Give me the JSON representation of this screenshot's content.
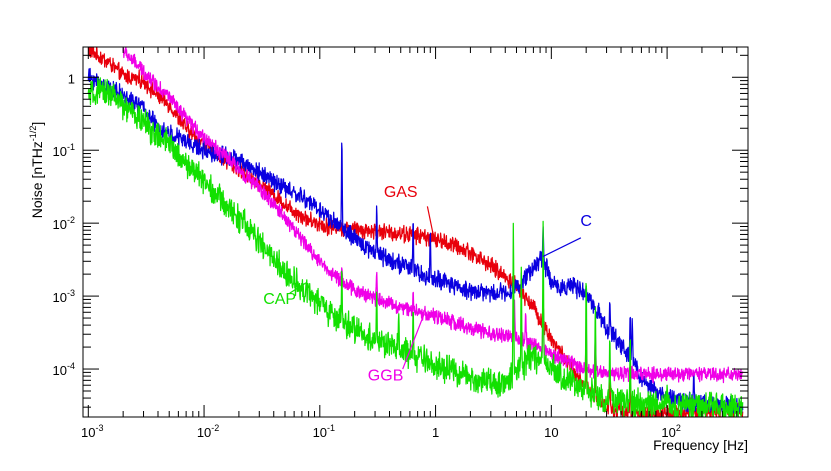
{
  "chart_data": {
    "type": "line",
    "title": "",
    "xlabel": "Frequency [Hz]",
    "ylabel": {
      "base": "Noise [nTHz",
      "exponent": "-1/2",
      "close": "]"
    },
    "xscale": "log",
    "yscale": "log",
    "xlim": [
      0.0009,
      500
    ],
    "ylim": [
      2.2e-05,
      2.6
    ],
    "grid": false,
    "legend": "none",
    "x_ticks": [
      {
        "base": "10",
        "exp": "-3",
        "value": 0.001
      },
      {
        "base": "10",
        "exp": "-2",
        "value": 0.01
      },
      {
        "base": "10",
        "exp": "-1",
        "value": 0.1
      },
      {
        "base": "1",
        "exp": "",
        "value": 1
      },
      {
        "base": "10",
        "exp": "",
        "value": 10
      },
      {
        "base": "10",
        "exp": "2",
        "value": 100
      }
    ],
    "y_ticks": [
      {
        "base": "10",
        "exp": "-4",
        "value": 0.0001
      },
      {
        "base": "10",
        "exp": "-3",
        "value": 0.001
      },
      {
        "base": "10",
        "exp": "-2",
        "value": 0.01
      },
      {
        "base": "10",
        "exp": "-1",
        "value": 0.1
      },
      {
        "base": "1",
        "exp": "",
        "value": 1
      }
    ],
    "series": [
      {
        "name": "GAS",
        "color": "#e8000b",
        "noise": 0.18,
        "points": [
          [
            0.001,
            2.4
          ],
          [
            0.0015,
            1.6
          ],
          [
            0.002,
            1.05
          ],
          [
            0.003,
            0.9
          ],
          [
            0.004,
            0.55
          ],
          [
            0.005,
            0.42
          ],
          [
            0.007,
            0.2
          ],
          [
            0.01,
            0.12
          ],
          [
            0.015,
            0.075
          ],
          [
            0.02,
            0.055
          ],
          [
            0.03,
            0.035
          ],
          [
            0.05,
            0.018
          ],
          [
            0.08,
            0.011
          ],
          [
            0.12,
            0.009
          ],
          [
            0.2,
            0.0082
          ],
          [
            0.3,
            0.0078
          ],
          [
            0.5,
            0.0072
          ],
          [
            0.8,
            0.0066
          ],
          [
            1.2,
            0.0055
          ],
          [
            2,
            0.004
          ],
          [
            3,
            0.0026
          ],
          [
            5,
            0.0014
          ],
          [
            7,
            0.00072
          ],
          [
            10,
            0.00026
          ],
          [
            15,
            0.0001
          ],
          [
            20,
            5.2e-05
          ],
          [
            30,
            3e-05
          ],
          [
            50,
            2.5e-05
          ],
          [
            100,
            2.4e-05
          ],
          [
            200,
            2.6e-05
          ],
          [
            450,
            2.8e-05
          ]
        ],
        "peaks": [
          [
            8.5,
            0.0008
          ],
          [
            20,
            0.0002
          ],
          [
            24,
            9e-05
          ],
          [
            32,
            0.0001
          ],
          [
            48,
            9e-05
          ],
          [
            160,
            4e-05
          ]
        ]
      },
      {
        "name": "C",
        "color": "#0a00e0",
        "noise": 0.2,
        "points": [
          [
            0.001,
            1.0
          ],
          [
            0.0015,
            0.72
          ],
          [
            0.002,
            0.55
          ],
          [
            0.003,
            0.38
          ],
          [
            0.004,
            0.2
          ],
          [
            0.005,
            0.17
          ],
          [
            0.007,
            0.13
          ],
          [
            0.01,
            0.1
          ],
          [
            0.015,
            0.085
          ],
          [
            0.02,
            0.07
          ],
          [
            0.03,
            0.05
          ],
          [
            0.05,
            0.03
          ],
          [
            0.08,
            0.02
          ],
          [
            0.12,
            0.012
          ],
          [
            0.2,
            0.006
          ],
          [
            0.3,
            0.004
          ],
          [
            0.5,
            0.0027
          ],
          [
            0.8,
            0.0019
          ],
          [
            1.2,
            0.0015
          ],
          [
            2,
            0.0012
          ],
          [
            3,
            0.0011
          ],
          [
            4,
            0.00115
          ],
          [
            5,
            0.0013
          ],
          [
            6,
            0.0018
          ],
          [
            7,
            0.0025
          ],
          [
            8,
            0.0033
          ],
          [
            9,
            0.0025
          ],
          [
            10,
            0.0016
          ],
          [
            12,
            0.0013
          ],
          [
            15,
            0.0014
          ],
          [
            20,
            0.001
          ],
          [
            25,
            0.00065
          ],
          [
            30,
            0.00035
          ],
          [
            40,
            0.00022
          ],
          [
            50,
            0.00013
          ],
          [
            60,
            7.5e-05
          ],
          [
            80,
            4.8e-05
          ],
          [
            100,
            4.2e-05
          ],
          [
            150,
            3.6e-05
          ],
          [
            200,
            3.3e-05
          ],
          [
            300,
            3.1e-05
          ],
          [
            450,
            3e-05
          ]
        ],
        "peaks": [
          [
            0.155,
            0.16
          ],
          [
            0.31,
            0.018
          ],
          [
            0.64,
            0.012
          ],
          [
            0.9,
            0.008
          ],
          [
            8.5,
            0.009
          ],
          [
            20,
            0.0014
          ],
          [
            32,
            0.0009
          ],
          [
            48,
            0.0006
          ],
          [
            50,
            0.0005
          ],
          [
            170,
            0.0001
          ]
        ]
      },
      {
        "name": "GGB",
        "color": "#f000e8",
        "noise": 0.16,
        "points": [
          [
            0.002,
            2.3
          ],
          [
            0.003,
            1.2
          ],
          [
            0.004,
            0.75
          ],
          [
            0.005,
            0.55
          ],
          [
            0.006,
            0.35
          ],
          [
            0.007,
            0.27
          ],
          [
            0.01,
            0.15
          ],
          [
            0.015,
            0.085
          ],
          [
            0.02,
            0.055
          ],
          [
            0.03,
            0.03
          ],
          [
            0.05,
            0.012
          ],
          [
            0.08,
            0.0045
          ],
          [
            0.12,
            0.0022
          ],
          [
            0.2,
            0.0012
          ],
          [
            0.3,
            0.00095
          ],
          [
            0.5,
            0.0007
          ],
          [
            0.8,
            0.00058
          ],
          [
            1.2,
            0.00048
          ],
          [
            2,
            0.00036
          ],
          [
            3,
            0.0003
          ],
          [
            5,
            0.00027
          ],
          [
            8,
            0.0002
          ],
          [
            12,
            0.00014
          ],
          [
            20,
            0.0001
          ],
          [
            30,
            8.8e-05
          ],
          [
            50,
            8.6e-05
          ],
          [
            100,
            8.5e-05
          ],
          [
            200,
            8.4e-05
          ],
          [
            450,
            8.4e-05
          ]
        ],
        "peaks": [
          [
            0.155,
            0.0025
          ],
          [
            0.31,
            0.0022
          ],
          [
            0.64,
            0.0012
          ],
          [
            4.8,
            0.0009
          ],
          [
            6,
            0.0006
          ],
          [
            8.5,
            0.0009
          ],
          [
            20,
            0.0004
          ],
          [
            24,
            0.0003
          ]
        ]
      },
      {
        "name": "CAP",
        "color": "#12e000",
        "noise": 0.3,
        "points": [
          [
            0.001,
            0.55
          ],
          [
            0.0015,
            0.65
          ],
          [
            0.002,
            0.4
          ],
          [
            0.003,
            0.25
          ],
          [
            0.004,
            0.15
          ],
          [
            0.005,
            0.12
          ],
          [
            0.007,
            0.065
          ],
          [
            0.01,
            0.04
          ],
          [
            0.015,
            0.018
          ],
          [
            0.02,
            0.012
          ],
          [
            0.03,
            0.0055
          ],
          [
            0.05,
            0.0021
          ],
          [
            0.08,
            0.0011
          ],
          [
            0.12,
            0.0006
          ],
          [
            0.2,
            0.00035
          ],
          [
            0.3,
            0.00025
          ],
          [
            0.5,
            0.00018
          ],
          [
            0.8,
            0.00013
          ],
          [
            1.2,
            0.0001
          ],
          [
            2,
            7.5e-05
          ],
          [
            3,
            6.5e-05
          ],
          [
            4,
            7e-05
          ],
          [
            5,
            9e-05
          ],
          [
            7,
            0.00015
          ],
          [
            10,
            0.0001
          ],
          [
            15,
            6.5e-05
          ],
          [
            20,
            5e-05
          ],
          [
            30,
            3.8e-05
          ],
          [
            50,
            3.4e-05
          ],
          [
            100,
            3.2e-05
          ],
          [
            200,
            3.1e-05
          ],
          [
            450,
            3e-05
          ]
        ],
        "peaks": [
          [
            0.155,
            0.0024
          ],
          [
            0.31,
            0.0012
          ],
          [
            0.48,
            0.0006
          ],
          [
            0.64,
            0.0007
          ],
          [
            4.7,
            0.011
          ],
          [
            5.5,
            0.0025
          ],
          [
            8.5,
            0.011
          ],
          [
            20,
            0.0022
          ],
          [
            24,
            0.0008
          ],
          [
            32,
            0.0003
          ],
          [
            48,
            0.0003
          ],
          [
            100,
            6e-05
          ]
        ]
      }
    ],
    "annotations": [
      {
        "text": "GAS",
        "series": "GAS",
        "x": 0.5,
        "y": 0.023,
        "arrow_to": [
          0.95,
          0.0072
        ],
        "arrow_from": [
          0.85,
          0.017
        ]
      },
      {
        "text": "C",
        "series": "C",
        "x": 20,
        "y": 0.0092,
        "arrow_to": [
          8.5,
          0.0035
        ],
        "arrow_from": [
          18,
          0.0063
        ]
      },
      {
        "text": "CAP",
        "series": "CAP",
        "x": 0.045,
        "y": 0.00078,
        "arrow_to": [
          0.075,
          0.0015
        ],
        "arrow_from": [
          0.055,
          0.0011
        ]
      },
      {
        "text": "GGB",
        "series": "GGB",
        "x": 0.37,
        "y": 7e-05,
        "arrow_to": [
          0.8,
          0.00058
        ],
        "arrow_from": [
          0.52,
          0.0001
        ]
      }
    ]
  }
}
